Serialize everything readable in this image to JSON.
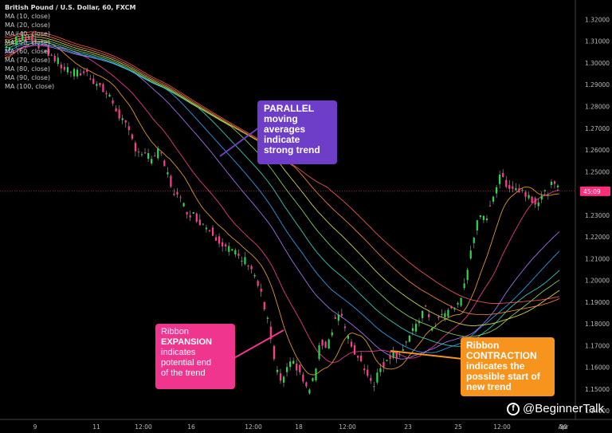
{
  "chart_data": {
    "type": "line",
    "title": "British Pound / U.S. Dollar, 60, FXCM",
    "legend": [
      "MA (10, close)",
      "MA (20, close)",
      "MA (40, close)",
      "MA (50, close)",
      "MA (60, close)",
      "MA (70, close)",
      "MA (80, close)",
      "MA (90, close)",
      "MA (100, close)"
    ],
    "price_ticks": [
      "1.32000",
      "1.31000",
      "1.30000",
      "1.29000",
      "1.28000",
      "1.27000",
      "1.26000",
      "1.25000",
      "1.23000",
      "1.22000",
      "1.21000",
      "1.20000",
      "1.19000",
      "1.18000",
      "1.17000",
      "1.16000",
      "1.15000",
      "1.14000"
    ],
    "ylim": [
      1.1375,
      1.3275
    ],
    "current_price_label": "45:09",
    "current_price": 1.241,
    "x_ticks": [
      "9",
      "11",
      "12:00",
      "16",
      "12:00",
      "18",
      "12:00",
      "23",
      "25",
      "12:00",
      "30",
      "Apr"
    ],
    "series_colors": [
      "#f5a623",
      "#ff3d9a",
      "#b07cff",
      "#2fa8ff",
      "#33e0c8",
      "#8fe06a",
      "#e8e84a",
      "#ff8a3d",
      "#ff5a5a"
    ],
    "price_path": [
      [
        0,
        1.307
      ],
      [
        4,
        1.311
      ],
      [
        8,
        1.312
      ],
      [
        11,
        1.308
      ],
      [
        14,
        1.304
      ],
      [
        18,
        1.298
      ],
      [
        22,
        1.295
      ],
      [
        25,
        1.296
      ],
      [
        29,
        1.29
      ],
      [
        33,
        1.283
      ],
      [
        37,
        1.272
      ],
      [
        41,
        1.26
      ],
      [
        45,
        1.256
      ],
      [
        48,
        1.259
      ],
      [
        52,
        1.242
      ],
      [
        56,
        1.233
      ],
      [
        60,
        1.228
      ],
      [
        64,
        1.223
      ],
      [
        67,
        1.218
      ],
      [
        70,
        1.214
      ],
      [
        73,
        1.21
      ],
      [
        76,
        1.208
      ],
      [
        79,
        1.196
      ],
      [
        82,
        1.178
      ],
      [
        84,
        1.158
      ],
      [
        86,
        1.153
      ],
      [
        88,
        1.16
      ],
      [
        90,
        1.162
      ],
      [
        92,
        1.156
      ],
      [
        94,
        1.148
      ],
      [
        96,
        1.156
      ],
      [
        98,
        1.172
      ],
      [
        100,
        1.17
      ],
      [
        102,
        1.181
      ],
      [
        104,
        1.186
      ],
      [
        106,
        1.174
      ],
      [
        109,
        1.166
      ],
      [
        112,
        1.159
      ],
      [
        114,
        1.152
      ],
      [
        116,
        1.158
      ],
      [
        119,
        1.166
      ],
      [
        122,
        1.166
      ],
      [
        125,
        1.173
      ],
      [
        128,
        1.179
      ],
      [
        130,
        1.19
      ],
      [
        132,
        1.178
      ],
      [
        135,
        1.183
      ],
      [
        138,
        1.186
      ],
      [
        141,
        1.19
      ],
      [
        143,
        1.2
      ],
      [
        145,
        1.219
      ],
      [
        147,
        1.228
      ],
      [
        149,
        1.228
      ],
      [
        152,
        1.242
      ],
      [
        154,
        1.248
      ],
      [
        156,
        1.244
      ],
      [
        159,
        1.242
      ],
      [
        162,
        1.24
      ],
      [
        165,
        1.236
      ],
      [
        167,
        1.239
      ],
      [
        170,
        1.244
      ],
      [
        172,
        1.241
      ]
    ],
    "annotations": [
      {
        "lines": [
          "PARALLEL",
          "moving",
          "averages",
          "indicate",
          "strong trend"
        ],
        "color": "#6f3ec9"
      },
      {
        "lines": [
          "Ribbon",
          "EXPANSION",
          "indicates",
          "potential end",
          "of the trend"
        ],
        "color": "#f0358e"
      },
      {
        "lines": [
          "Ribbon",
          "CONTRACTION",
          "indicates the",
          "possible start of",
          "new trend"
        ],
        "color": "#f7941d"
      }
    ]
  },
  "brand": {
    "text": "@BeginnerTalk",
    "logo": "bt-logo-icon"
  }
}
